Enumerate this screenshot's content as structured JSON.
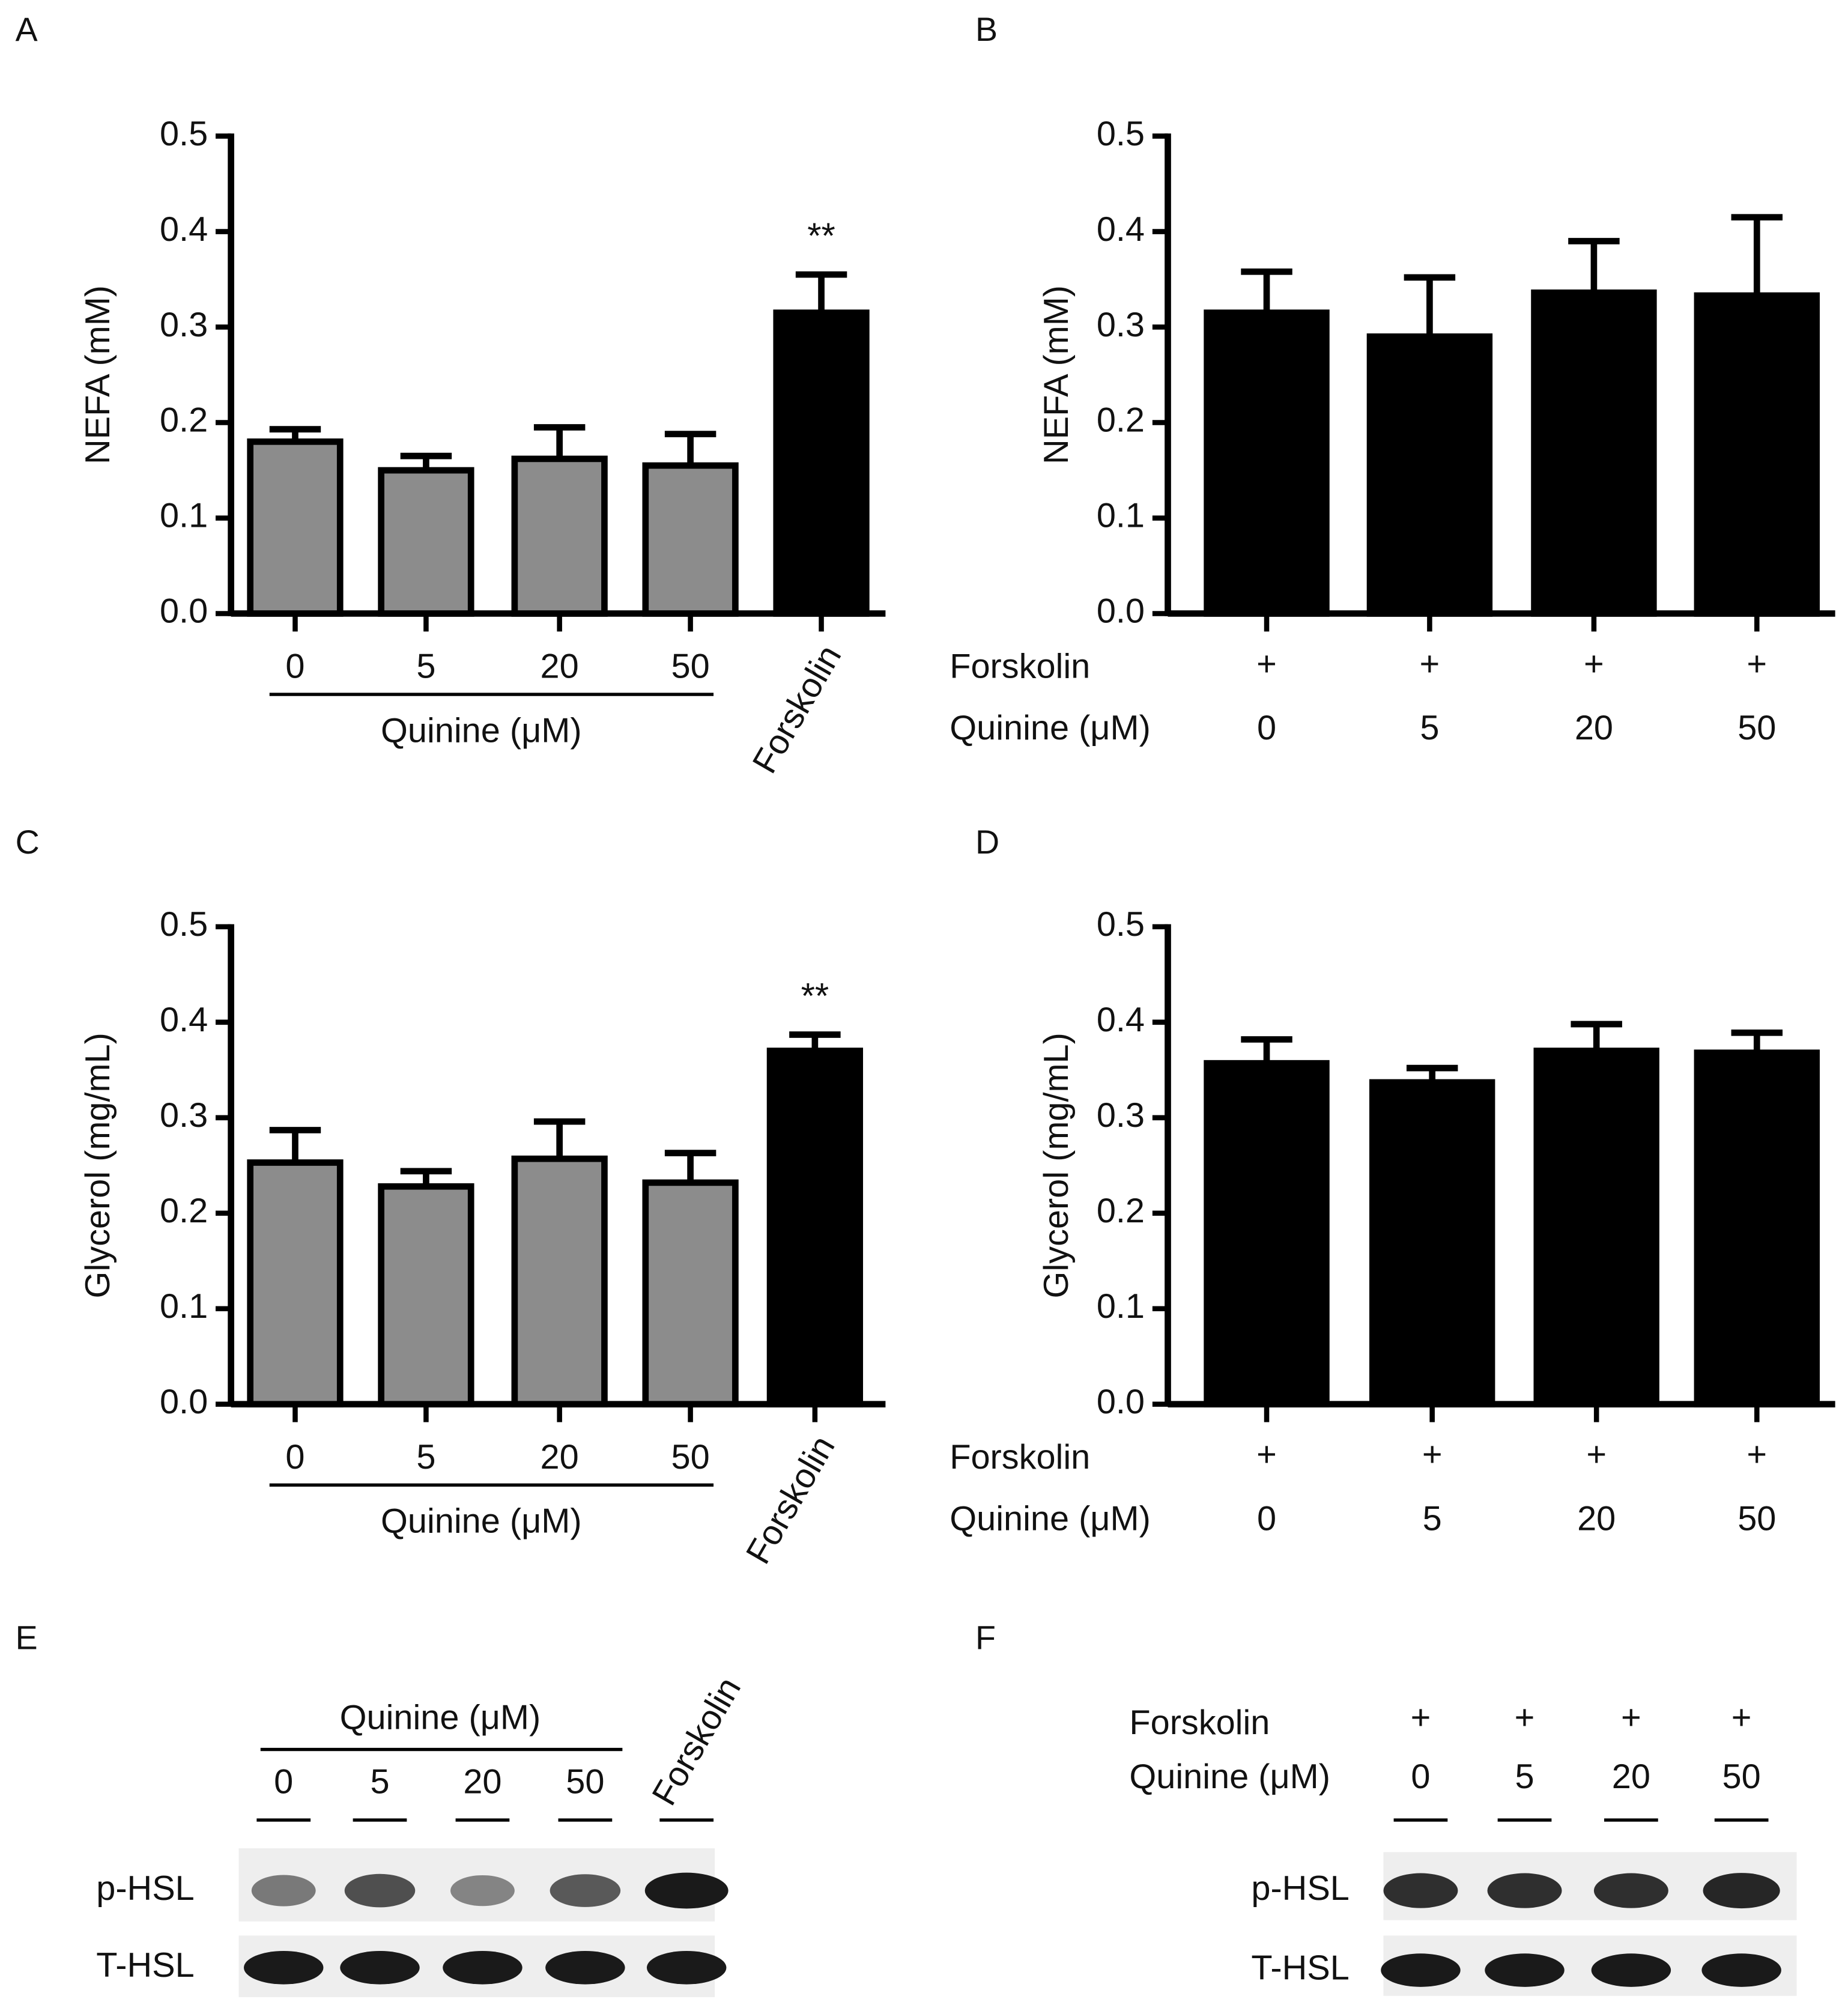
{
  "chart_data": [
    {
      "type": "bar",
      "panel": "A",
      "y_label": "NEFA (mM)",
      "group_label": "Quinine (μM)",
      "categories": [
        "0",
        "5",
        "20",
        "50",
        "Forskolin"
      ],
      "values": [
        0.18,
        0.15,
        0.162,
        0.155,
        0.315
      ],
      "errors": [
        0.013,
        0.015,
        0.033,
        0.033,
        0.04
      ],
      "colors": [
        "#8c8c8c",
        "#8c8c8c",
        "#8c8c8c",
        "#8c8c8c",
        "#000000"
      ],
      "annotation": "**",
      "ylim": [
        0,
        0.5
      ],
      "yticks": [
        {
          "value": 0,
          "label": "0.0"
        },
        0.1,
        0.2,
        0.3,
        0.4,
        0.5
      ]
    },
    {
      "type": "bar",
      "panel": "B",
      "y_label": "NEFA (mM)",
      "row_labels": [
        "Forskolin",
        "Quinine (μM)"
      ],
      "forskolin_marks": [
        "+",
        "+",
        "+",
        "+"
      ],
      "categories": [
        "0",
        "5",
        "20",
        "50"
      ],
      "values": [
        0.315,
        0.29,
        0.336,
        0.333
      ],
      "errors": [
        0.043,
        0.062,
        0.054,
        0.082
      ],
      "colors": [
        "#000000",
        "#000000",
        "#000000",
        "#000000"
      ],
      "ylim": [
        0,
        0.5
      ],
      "yticks": [
        {
          "value": 0,
          "label": "0.0"
        },
        0.1,
        0.2,
        0.3,
        0.4,
        0.5
      ]
    },
    {
      "type": "bar",
      "panel": "C",
      "y_label": "Glycerol (mg/mL)",
      "group_label": "Quinine (μM)",
      "categories": [
        "0",
        "5",
        "20",
        "50",
        "Forskolin"
      ],
      "values": [
        0.253,
        0.228,
        0.257,
        0.232,
        0.37
      ],
      "errors": [
        0.034,
        0.016,
        0.039,
        0.031,
        0.017
      ],
      "colors": [
        "#8c8c8c",
        "#8c8c8c",
        "#8c8c8c",
        "#8c8c8c",
        "#000000"
      ],
      "annotation": "**",
      "ylim": [
        0,
        0.5
      ],
      "yticks": [
        {
          "value": 0,
          "label": "0.0"
        },
        0.1,
        0.2,
        0.3,
        0.4,
        0.5
      ]
    },
    {
      "type": "bar",
      "panel": "D",
      "y_label": "Glycerol (mg/mL)",
      "row_labels": [
        "Forskolin",
        "Quinine (μM)"
      ],
      "forskolin_marks": [
        "+",
        "+",
        "+",
        "+"
      ],
      "categories": [
        "0",
        "5",
        "20",
        "50"
      ],
      "values": [
        0.357,
        0.337,
        0.37,
        0.368
      ],
      "errors": [
        0.025,
        0.015,
        0.028,
        0.021
      ],
      "colors": [
        "#000000",
        "#000000",
        "#000000",
        "#000000"
      ],
      "ylim": [
        0,
        0.5
      ],
      "yticks": [
        {
          "value": 0,
          "label": "0.0"
        },
        0.1,
        0.2,
        0.3,
        0.4,
        0.5
      ]
    }
  ],
  "blots": [
    {
      "panel": "E",
      "group_label": "Quinine (μM)",
      "lanes": [
        "0",
        "5",
        "20",
        "50",
        "Forskolin"
      ],
      "rows": [
        "p-HSL",
        "T-HSL"
      ]
    },
    {
      "panel": "F",
      "row_labels": [
        "Forskolin",
        "Quinine (μM)"
      ],
      "forskolin_marks": [
        "+",
        "+",
        "+",
        "+"
      ],
      "lanes": [
        "0",
        "5",
        "20",
        "50"
      ],
      "rows": [
        "p-HSL",
        "T-HSL"
      ]
    }
  ]
}
